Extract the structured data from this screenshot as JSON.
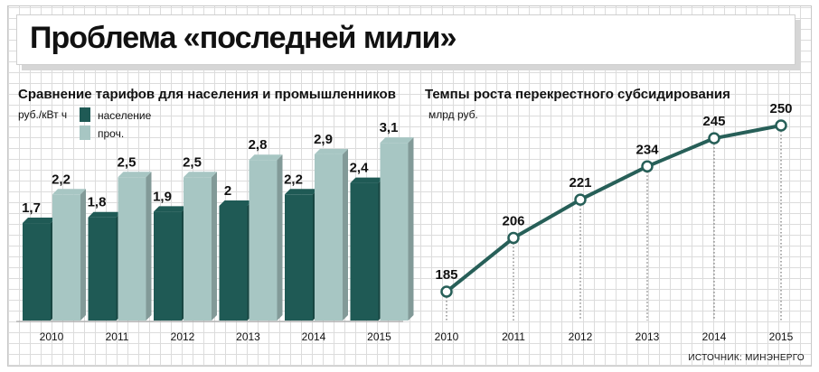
{
  "header": {
    "title": "Проблема «последней мили»"
  },
  "footer": {
    "source": "ИСТОЧНИК: МИНЭНЕРГО"
  },
  "colors": {
    "dark_teal": "#1f5a55",
    "light_teal": "#a7c6c3",
    "line": "#275f58"
  },
  "chart_data": [
    {
      "type": "bar",
      "title": "Сравнение тарифов для населения и промышленников",
      "ylabel": "руб./кВт ч",
      "categories": [
        "2010",
        "2011",
        "2012",
        "2013",
        "2014",
        "2015"
      ],
      "series": [
        {
          "name": "население",
          "values": [
            1.7,
            1.8,
            1.9,
            2,
            2.2,
            2.4
          ],
          "labels": [
            "1,7",
            "1,8",
            "1,9",
            "2",
            "2,2",
            "2,4"
          ]
        },
        {
          "name": "проч.",
          "values": [
            2.2,
            2.5,
            2.5,
            2.8,
            2.9,
            3.1
          ],
          "labels": [
            "2,2",
            "2,5",
            "2,5",
            "2,8",
            "2,9",
            "3,1"
          ]
        }
      ],
      "legend": "top-left",
      "ylim": [
        0,
        3.2
      ]
    },
    {
      "type": "line",
      "title": "Темпы роста перекрестного субсидирования",
      "ylabel": "млрд руб.",
      "x": [
        "2010",
        "2011",
        "2012",
        "2013",
        "2014",
        "2015"
      ],
      "y": [
        185,
        206,
        221,
        234,
        245,
        250
      ],
      "ylim": [
        170,
        260
      ]
    }
  ]
}
